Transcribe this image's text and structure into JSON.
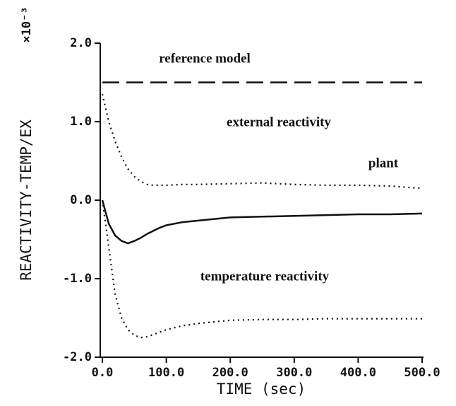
{
  "chart_data": {
    "type": "line",
    "xlabel": "TIME (sec)",
    "ylabel": "REACTIVITY-TEMP/EX",
    "y_multiplier": "×10⁻³",
    "x": [
      0,
      10,
      20,
      30,
      40,
      50,
      60,
      70,
      80,
      90,
      100,
      125,
      150,
      200,
      250,
      300,
      350,
      400,
      450,
      500
    ],
    "series": [
      {
        "name": "reference model",
        "color": "#111111",
        "dash": "dashed",
        "values": [
          1.5,
          1.5,
          1.5,
          1.5,
          1.5,
          1.5,
          1.5,
          1.5,
          1.5,
          1.5,
          1.5,
          1.5,
          1.5,
          1.5,
          1.5,
          1.5,
          1.5,
          1.5,
          1.5,
          1.5
        ]
      },
      {
        "name": "external reactivity",
        "color": "#111111",
        "dash": "dotted",
        "values": [
          1.35,
          1.0,
          0.75,
          0.55,
          0.4,
          0.3,
          0.24,
          0.2,
          0.19,
          0.19,
          0.19,
          0.2,
          0.2,
          0.21,
          0.22,
          0.2,
          0.19,
          0.19,
          0.18,
          0.15
        ]
      },
      {
        "name": "plant",
        "color": "#111111",
        "dash": "solid",
        "values": [
          0,
          -0.3,
          -0.45,
          -0.52,
          -0.55,
          -0.52,
          -0.48,
          -0.43,
          -0.39,
          -0.35,
          -0.32,
          -0.28,
          -0.26,
          -0.22,
          -0.21,
          -0.2,
          -0.19,
          -0.18,
          -0.18,
          -0.17
        ]
      },
      {
        "name": "temperature reactivity",
        "color": "#111111",
        "dash": "dotted",
        "values": [
          0,
          -0.6,
          -1.2,
          -1.5,
          -1.65,
          -1.72,
          -1.75,
          -1.74,
          -1.71,
          -1.68,
          -1.65,
          -1.6,
          -1.57,
          -1.53,
          -1.52,
          -1.52,
          -1.51,
          -1.51,
          -1.51,
          -1.51
        ]
      }
    ],
    "xlim": [
      0,
      500
    ],
    "ylim": [
      -2,
      2
    ],
    "xticks": [
      {
        "value": 0,
        "label": "0.0"
      },
      {
        "value": 100,
        "label": "100.0"
      },
      {
        "value": 200,
        "label": "200.0"
      },
      {
        "value": 300,
        "label": "300.0"
      },
      {
        "value": 400,
        "label": "400.0"
      },
      {
        "value": 500,
        "label": "500.0"
      }
    ],
    "yticks": [
      {
        "value": -2,
        "label": "-2.0"
      },
      {
        "value": -1,
        "label": "-1.0"
      },
      {
        "value": 0,
        "label": "0.0"
      },
      {
        "value": 1,
        "label": "1.0"
      },
      {
        "value": 2,
        "label": "2.0"
      }
    ],
    "grid": false
  }
}
